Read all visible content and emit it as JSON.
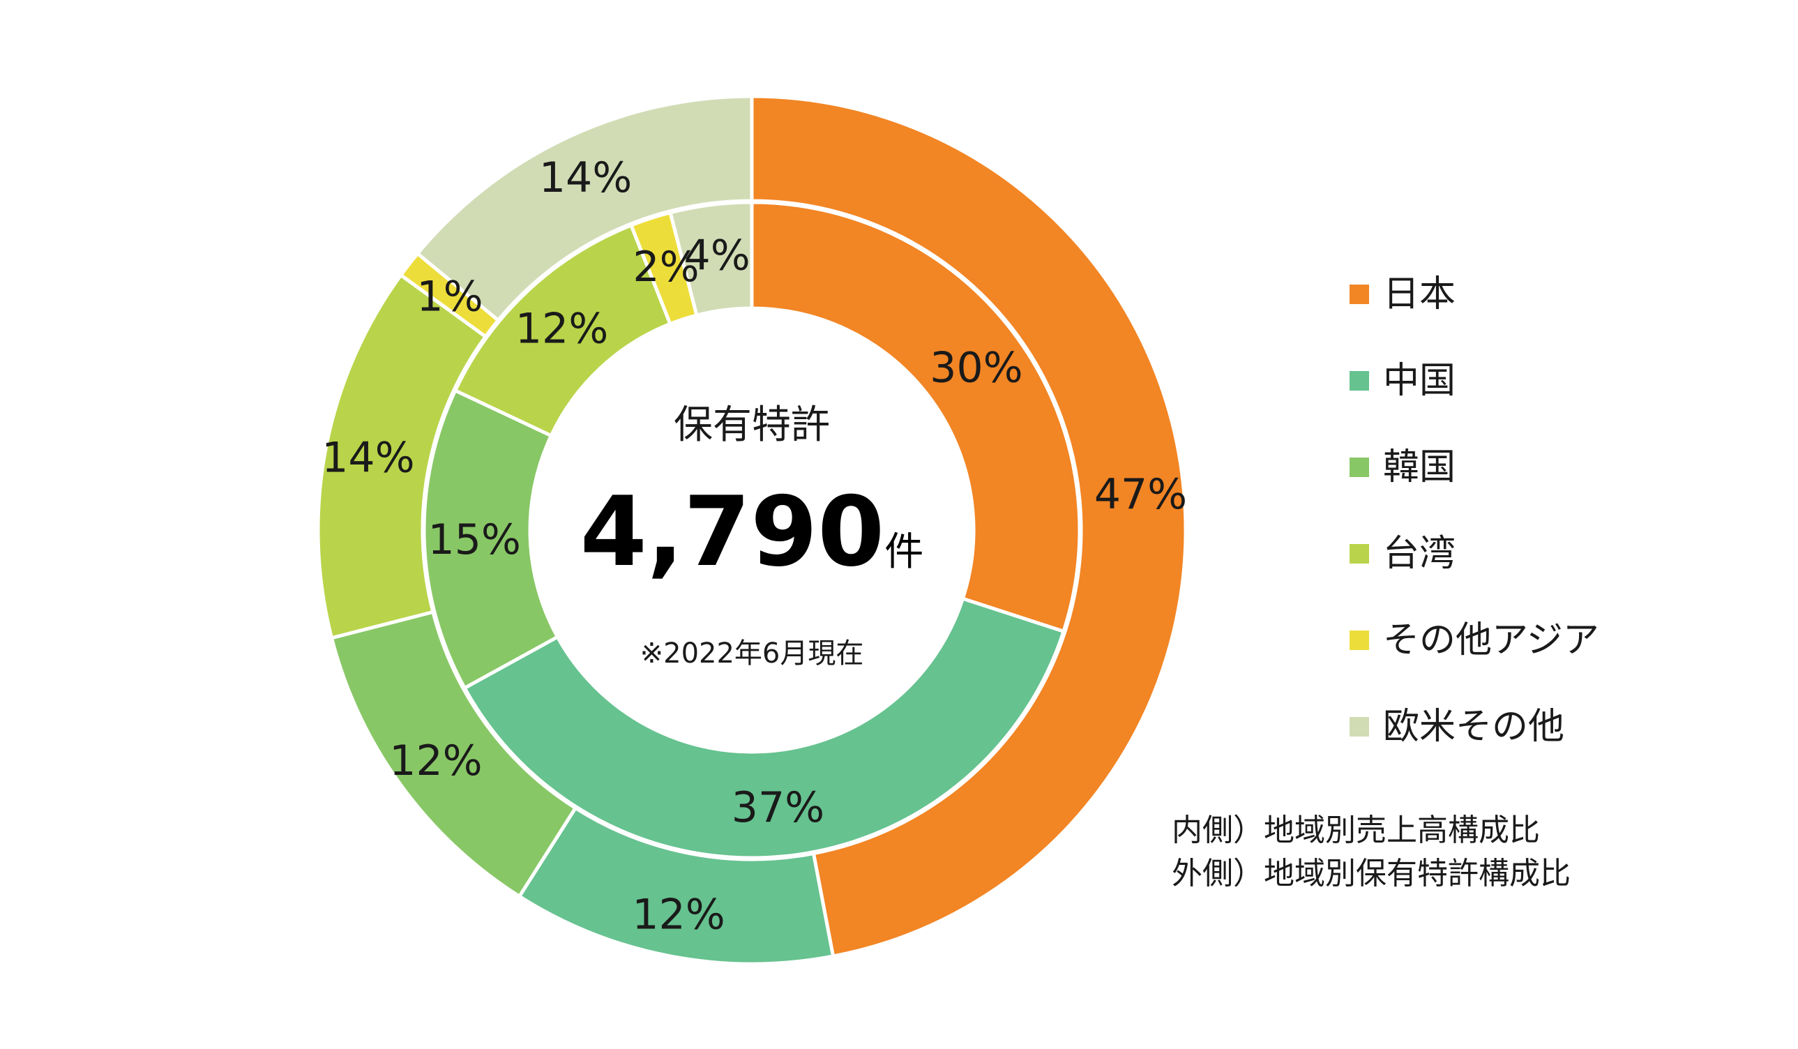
{
  "chart_data": {
    "type": "donut",
    "center": {
      "title": "保有特許",
      "value": "4,790",
      "unit": "件",
      "note": "※2022年6月現在"
    },
    "categories": [
      "日本",
      "中国",
      "韓国",
      "台湾",
      "その他アジア",
      "欧米その他"
    ],
    "colors": [
      "#F28524",
      "#66C28F",
      "#88C766",
      "#B9D44A",
      "#EDDD3A",
      "#D1DCB5"
    ],
    "series": [
      {
        "name": "地域別保有特許構成比",
        "ring": "outer",
        "values": [
          47,
          12,
          12,
          14,
          1,
          14
        ]
      },
      {
        "name": "地域別売上高構成比",
        "ring": "inner",
        "values": [
          30,
          37,
          15,
          12,
          2,
          4
        ]
      }
    ]
  },
  "notes": {
    "inner": "内側）地域別売上高構成比",
    "outer": "外側）地域別保有特許構成比"
  }
}
